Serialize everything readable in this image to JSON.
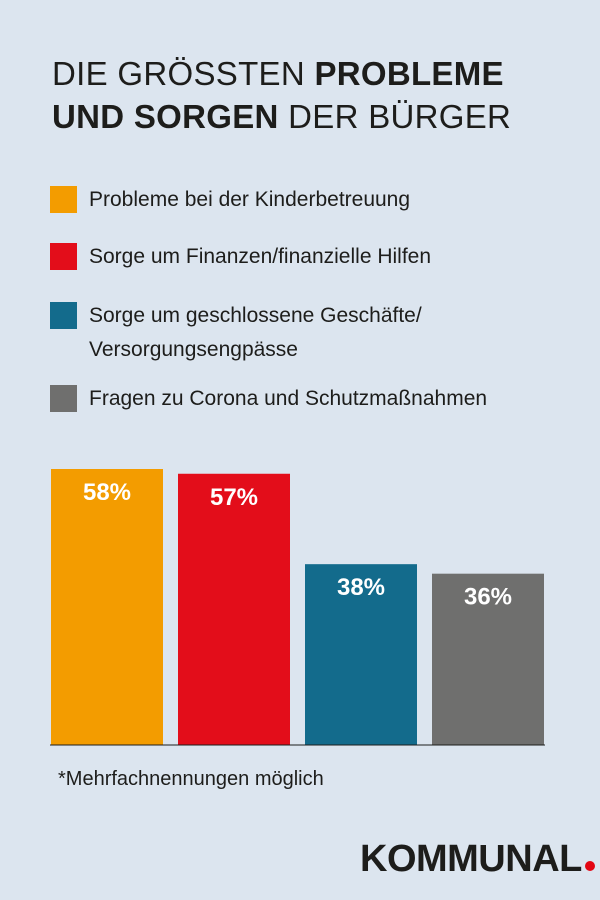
{
  "title": {
    "line1_light": "DIE GRÖSSTEN ",
    "line1_bold": "PROBLEME",
    "line2_bold": "UND SORGEN",
    "line2_light": " DER BÜRGER"
  },
  "legend": [
    {
      "label": "Probleme bei der Kinderbetreuung",
      "color": "#f39c00"
    },
    {
      "label": "Sorge um Finanzen/finanzielle Hilfen",
      "color": "#e30d1a"
    },
    {
      "label": "Sorge um geschlossene Geschäfte/ Versorgungsengpässe",
      "color": "#136b8c"
    },
    {
      "label": "Fragen zu Corona und Schutzmaßnahmen",
      "color": "#6f6f6e"
    }
  ],
  "chart_data": {
    "type": "bar",
    "categories": [
      "Probleme bei der Kinderbetreuung",
      "Sorge um Finanzen/finanzielle Hilfen",
      "Sorge um geschlossene Geschäfte/ Versorgungsengpässe",
      "Fragen zu Corona und Schutzmaßnahmen"
    ],
    "values": [
      58,
      57,
      38,
      36
    ],
    "data_labels": [
      "58%",
      "57%",
      "38%",
      "36%"
    ],
    "colors": [
      "#f39c00",
      "#e30d1a",
      "#136b8c",
      "#6f6f6e"
    ],
    "ylim": [
      0,
      58
    ],
    "grid": false,
    "legend_position": "top"
  },
  "footnote": "*Mehrfachnennungen möglich",
  "brand": {
    "name": "KOMMUNAL",
    "dot_color": "#e30613"
  }
}
